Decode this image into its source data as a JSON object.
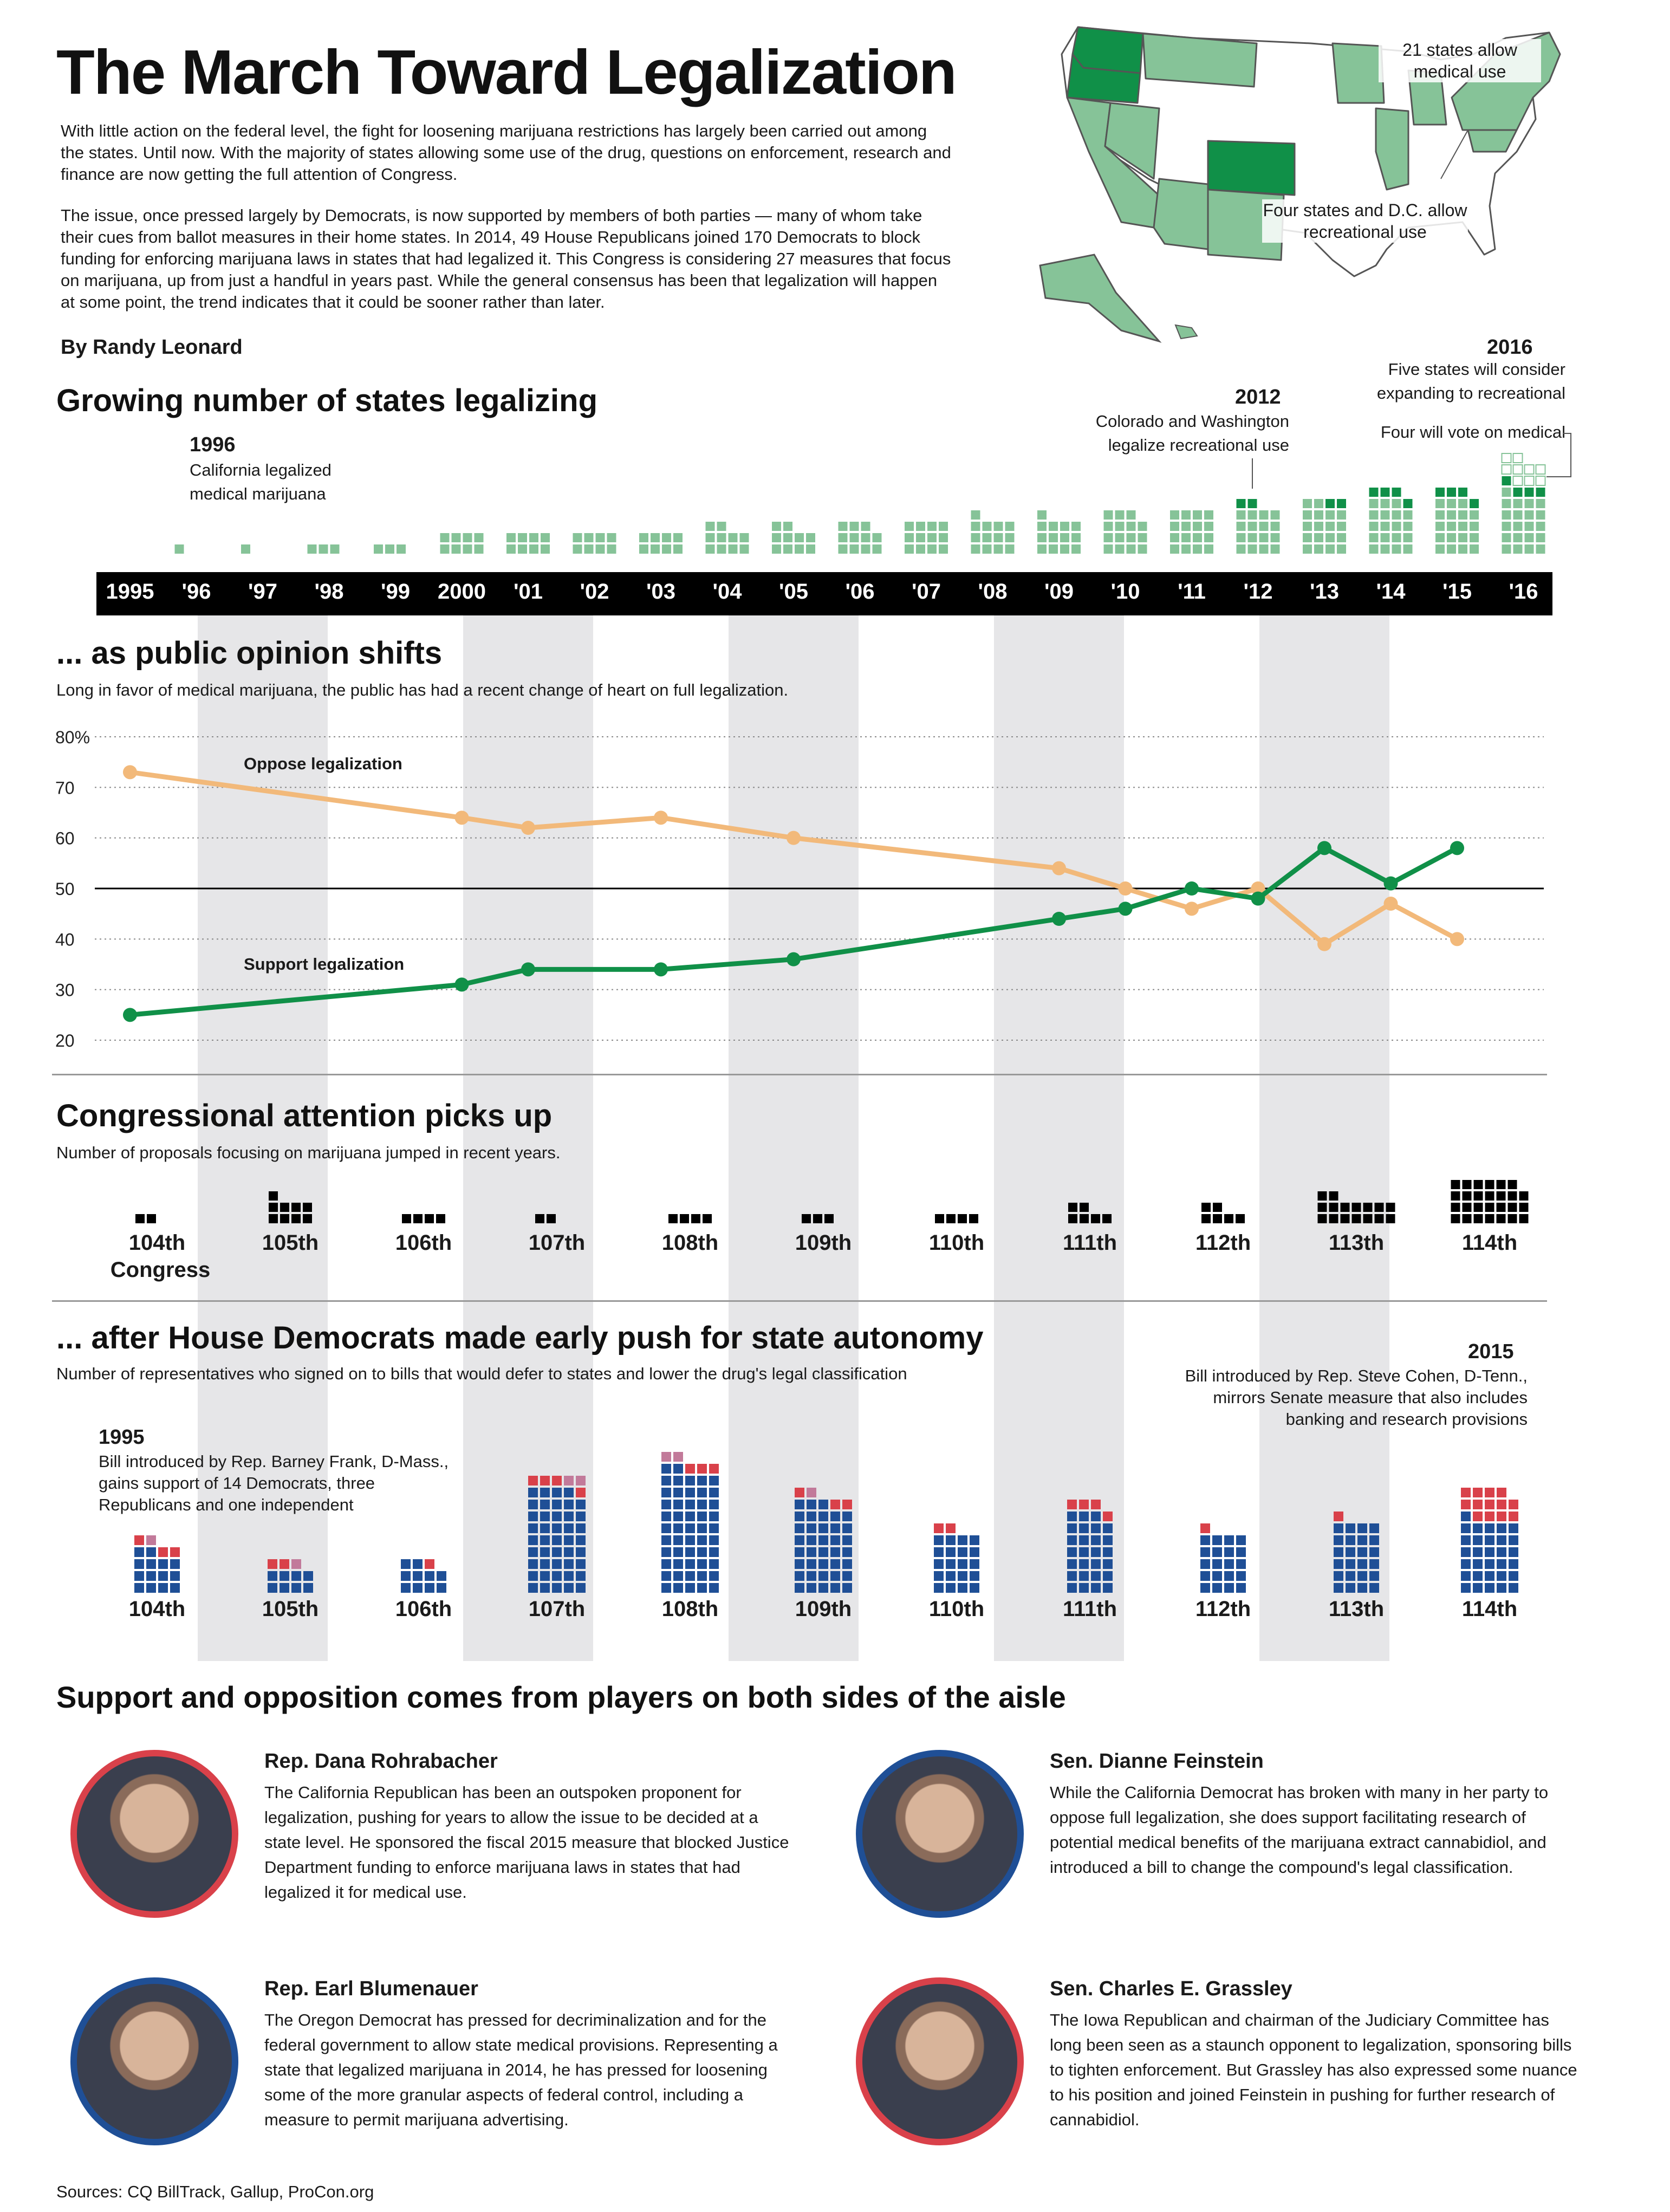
{
  "title": "The March Toward Legalization",
  "intro": {
    "p1": "With little action on the federal level, the fight for loosening marijuana restrictions has largely been carried out among the states. Until now. With the majority of states allowing some use of the drug, questions on enforcement, research and finance are now getting the full attention of Congress.",
    "p2": "The issue, once pressed largely by Democrats, is now supported by members of both parties — many of whom take their cues from ballot measures in their home states. In 2014, 49 House Republicans joined 170 Democrats to block funding for enforcing marijuana laws in states that had legalized it. This Congress is considering 27 measures that focus on marijuana, up from just a handful in years past. While the general consensus has been that legalization will happen at some point, the trend indicates that it could be sooner rather than later."
  },
  "byline": "By Randy Leonard",
  "map": {
    "medical_label": "21 states allow medical use",
    "recreational_label": "Four states and D.C. allow recreational use",
    "colors": {
      "medical": "#86c398",
      "recreational": "#109048",
      "none": "#ffffff",
      "outline": "#555555"
    }
  },
  "colors": {
    "light_green": "#86c398",
    "dark_green": "#109048",
    "oppose": "#f2b97a",
    "support": "#109048",
    "dem": "#1f4f96",
    "rep": "#d9414a",
    "ind": "#c27a9a",
    "band": "#e6e6e8"
  },
  "sections": {
    "states": {
      "title": "Growing number of states legalizing"
    },
    "opinion": {
      "title": "... as public opinion shifts",
      "subtitle": "Long in favor of medical marijuana, the public has had a recent change of heart on full legalization."
    },
    "congress": {
      "title": "Congressional attention picks up",
      "subtitle": "Number of proposals focusing on marijuana jumped in recent years."
    },
    "autonomy": {
      "title": "... after House Democrats made early push for state autonomy",
      "subtitle": "Number of representatives who signed on to bills that would defer to states and lower the drug's legal classification"
    },
    "players": {
      "title": "Support and opposition comes from players on both sides of the aisle"
    }
  },
  "annotations": {
    "y1996": {
      "year": "1996",
      "text1": "California legalized",
      "text2": "medical marijuana"
    },
    "y2012": {
      "year": "2012",
      "text1": "Colorado and Washington",
      "text2": "legalize recreational use"
    },
    "y2016": {
      "year": "2016",
      "text1": "Five states will consider",
      "text2": "expanding to recreational",
      "text3": "Four will vote on medical"
    },
    "c1995": {
      "year": "1995",
      "text1": "Bill introduced by Rep. Barney Frank, D-Mass.,",
      "text2": "gains support of 14 Democrats, three",
      "text3": "Republicans and one independent"
    },
    "c2015": {
      "year": "2015",
      "text1": "Bill introduced by Rep. Steve Cohen, D-Tenn.,",
      "text2": "mirrors Senate measure that also includes",
      "text3": "banking and research provisions"
    }
  },
  "chart_data": [
    {
      "type": "bar",
      "title": "Growing number of states legalizing",
      "categories": [
        "1995",
        "'96",
        "'97",
        "'98",
        "'99",
        "2000",
        "'01",
        "'02",
        "'03",
        "'04",
        "'05",
        "'06",
        "'07",
        "'08",
        "'09",
        "'10",
        "'11",
        "'12",
        "'13",
        "'14",
        "'15",
        "'16"
      ],
      "series": [
        {
          "values": [
            0,
            1,
            1,
            3,
            3,
            8,
            8,
            8,
            8,
            10,
            10,
            11,
            12,
            13,
            13,
            15,
            16,
            16,
            18,
            19,
            19,
            21
          ]
        },
        {
          "values": [
            0,
            0,
            0,
            0,
            0,
            0,
            0,
            0,
            0,
            0,
            0,
            0,
            0,
            0,
            0,
            0,
            0,
            2,
            2,
            4,
            4,
            4
          ]
        },
        {
          "values": [
            0,
            0,
            0,
            0,
            0,
            0,
            0,
            0,
            0,
            0,
            0,
            0,
            0,
            0,
            0,
            0,
            0,
            0,
            0,
            0,
            0,
            9
          ]
        }
      ]
    },
    {
      "type": "line",
      "title": "... as public opinion shifts",
      "ylim": [
        20,
        80
      ],
      "yticks": [
        "80%",
        "70",
        "60",
        "50",
        "40",
        "30",
        "20"
      ],
      "series": [
        {
          "name": "Oppose legalization",
          "x": [
            1995,
            2000,
            2001,
            2003,
            2005,
            2009,
            2010,
            2011,
            2012,
            2013,
            2014,
            2015
          ],
          "values": [
            73,
            64,
            62,
            64,
            60,
            54,
            50,
            46,
            50,
            39,
            47,
            40
          ]
        },
        {
          "name": "Support legalization",
          "x": [
            1995,
            2000,
            2001,
            2003,
            2005,
            2009,
            2010,
            2011,
            2012,
            2013,
            2014,
            2015
          ],
          "values": [
            25,
            31,
            34,
            34,
            36,
            44,
            46,
            50,
            48,
            58,
            51,
            58
          ]
        }
      ]
    },
    {
      "type": "bar",
      "title": "Congressional attention picks up",
      "categories": [
        "104th",
        "105th",
        "106th",
        "107th",
        "108th",
        "109th",
        "110th",
        "111th",
        "112th",
        "113th",
        "114th"
      ],
      "category_note": "Congress",
      "values": [
        2,
        9,
        4,
        2,
        4,
        3,
        4,
        6,
        6,
        16,
        27
      ]
    },
    {
      "type": "bar",
      "title": "... after House Democrats made early push for state autonomy",
      "categories": [
        "104th",
        "105th",
        "106th",
        "107th",
        "108th",
        "109th",
        "110th",
        "111th",
        "112th",
        "113th",
        "114th"
      ],
      "series": [
        {
          "values": [
            14,
            8,
            10,
            44,
            52,
            38,
            20,
            27,
            20,
            24,
            31
          ]
        },
        {
          "values": [
            3,
            2,
            1,
            4,
            3,
            3,
            2,
            4,
            1,
            1,
            13
          ]
        },
        {
          "values": [
            1,
            1,
            0,
            2,
            2,
            1,
            0,
            0,
            0,
            0,
            0
          ]
        }
      ]
    }
  ],
  "people": [
    {
      "name": "Rep. Dana Rohrabacher",
      "bio": "The California Republican has been an outspoken proponent for legalization, pushing for years to allow the issue to be decided at a state level. He sponsored the fiscal 2015 measure that blocked Justice Department funding to enforce marijuana laws in states that had legalized it for medical use.",
      "ring": "#d9414a"
    },
    {
      "name": "Sen. Dianne Feinstein",
      "bio": "While the California Democrat has broken with many in her party to oppose full legalization, she does support facilitating research of potential medical benefits of the marijuana extract cannabidiol, and introduced a bill to change the compound's legal classification.",
      "ring": "#1f4f96"
    },
    {
      "name": "Rep. Earl Blumenauer",
      "bio": "The Oregon Democrat has pressed for decriminalization and for the federal government to allow state medical provisions. Representing a state that legalized marijuana in 2014, he has pressed for loosening some of the more granular aspects of federal control, including a measure to permit marijuana advertising.",
      "ring": "#1f4f96"
    },
    {
      "name": "Sen. Charles E. Grassley",
      "bio": "The Iowa Republican and chairman of the Judiciary Committee has long been seen as a staunch opponent to legalization, sponsoring bills to tighten enforcement. But Grassley has also expressed some nuance to his position and joined Feinstein in pushing for further research of cannabidiol.",
      "ring": "#d9414a"
    }
  ],
  "sources": "Sources: CQ BillTrack, Gallup, ProCon.org"
}
